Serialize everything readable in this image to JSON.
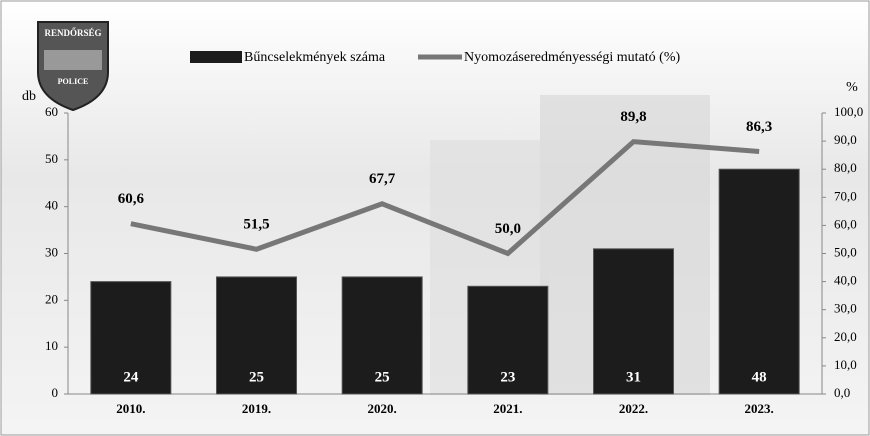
{
  "logo": {
    "top": "RENDŐRSÉG",
    "bottom": "POLICE"
  },
  "chart_data": {
    "type": "bar-line",
    "categories": [
      "2010.",
      "2019.",
      "2020.",
      "2021.",
      "2022.",
      "2023."
    ],
    "series": [
      {
        "name": "Bűncselekmények száma",
        "type": "bar",
        "color": "#1c1c1c",
        "values": [
          24,
          25,
          25,
          23,
          31,
          48
        ]
      },
      {
        "name": "Nyomozáseredményességi mutató (%)",
        "type": "line",
        "axis": "y2",
        "color": "#777777",
        "values": [
          60.6,
          51.5,
          67.7,
          50.0,
          89.8,
          86.3
        ],
        "value_labels": [
          "60,6",
          "51,5",
          "67,7",
          "50,0",
          "89,8",
          "86,3"
        ]
      }
    ],
    "y_label": "db",
    "y2_label": "%",
    "ylim": [
      0,
      60
    ],
    "yticks": [
      0,
      10,
      20,
      30,
      40,
      50,
      60
    ],
    "y2lim": [
      0,
      100
    ],
    "y2ticks": [
      {
        "value": 0,
        "label": "0,0"
      },
      {
        "value": 10,
        "label": "10,0"
      },
      {
        "value": 20,
        "label": "20,0"
      },
      {
        "value": 30,
        "label": "30,0"
      },
      {
        "value": 40,
        "label": "40,0"
      },
      {
        "value": 50,
        "label": "50,0"
      },
      {
        "value": 60,
        "label": "60,0"
      },
      {
        "value": 70,
        "label": "70,0"
      },
      {
        "value": 80,
        "label": "80,0"
      },
      {
        "value": 90,
        "label": "90,0"
      },
      {
        "value": 100,
        "label": "100,0"
      }
    ],
    "legend": "top"
  }
}
